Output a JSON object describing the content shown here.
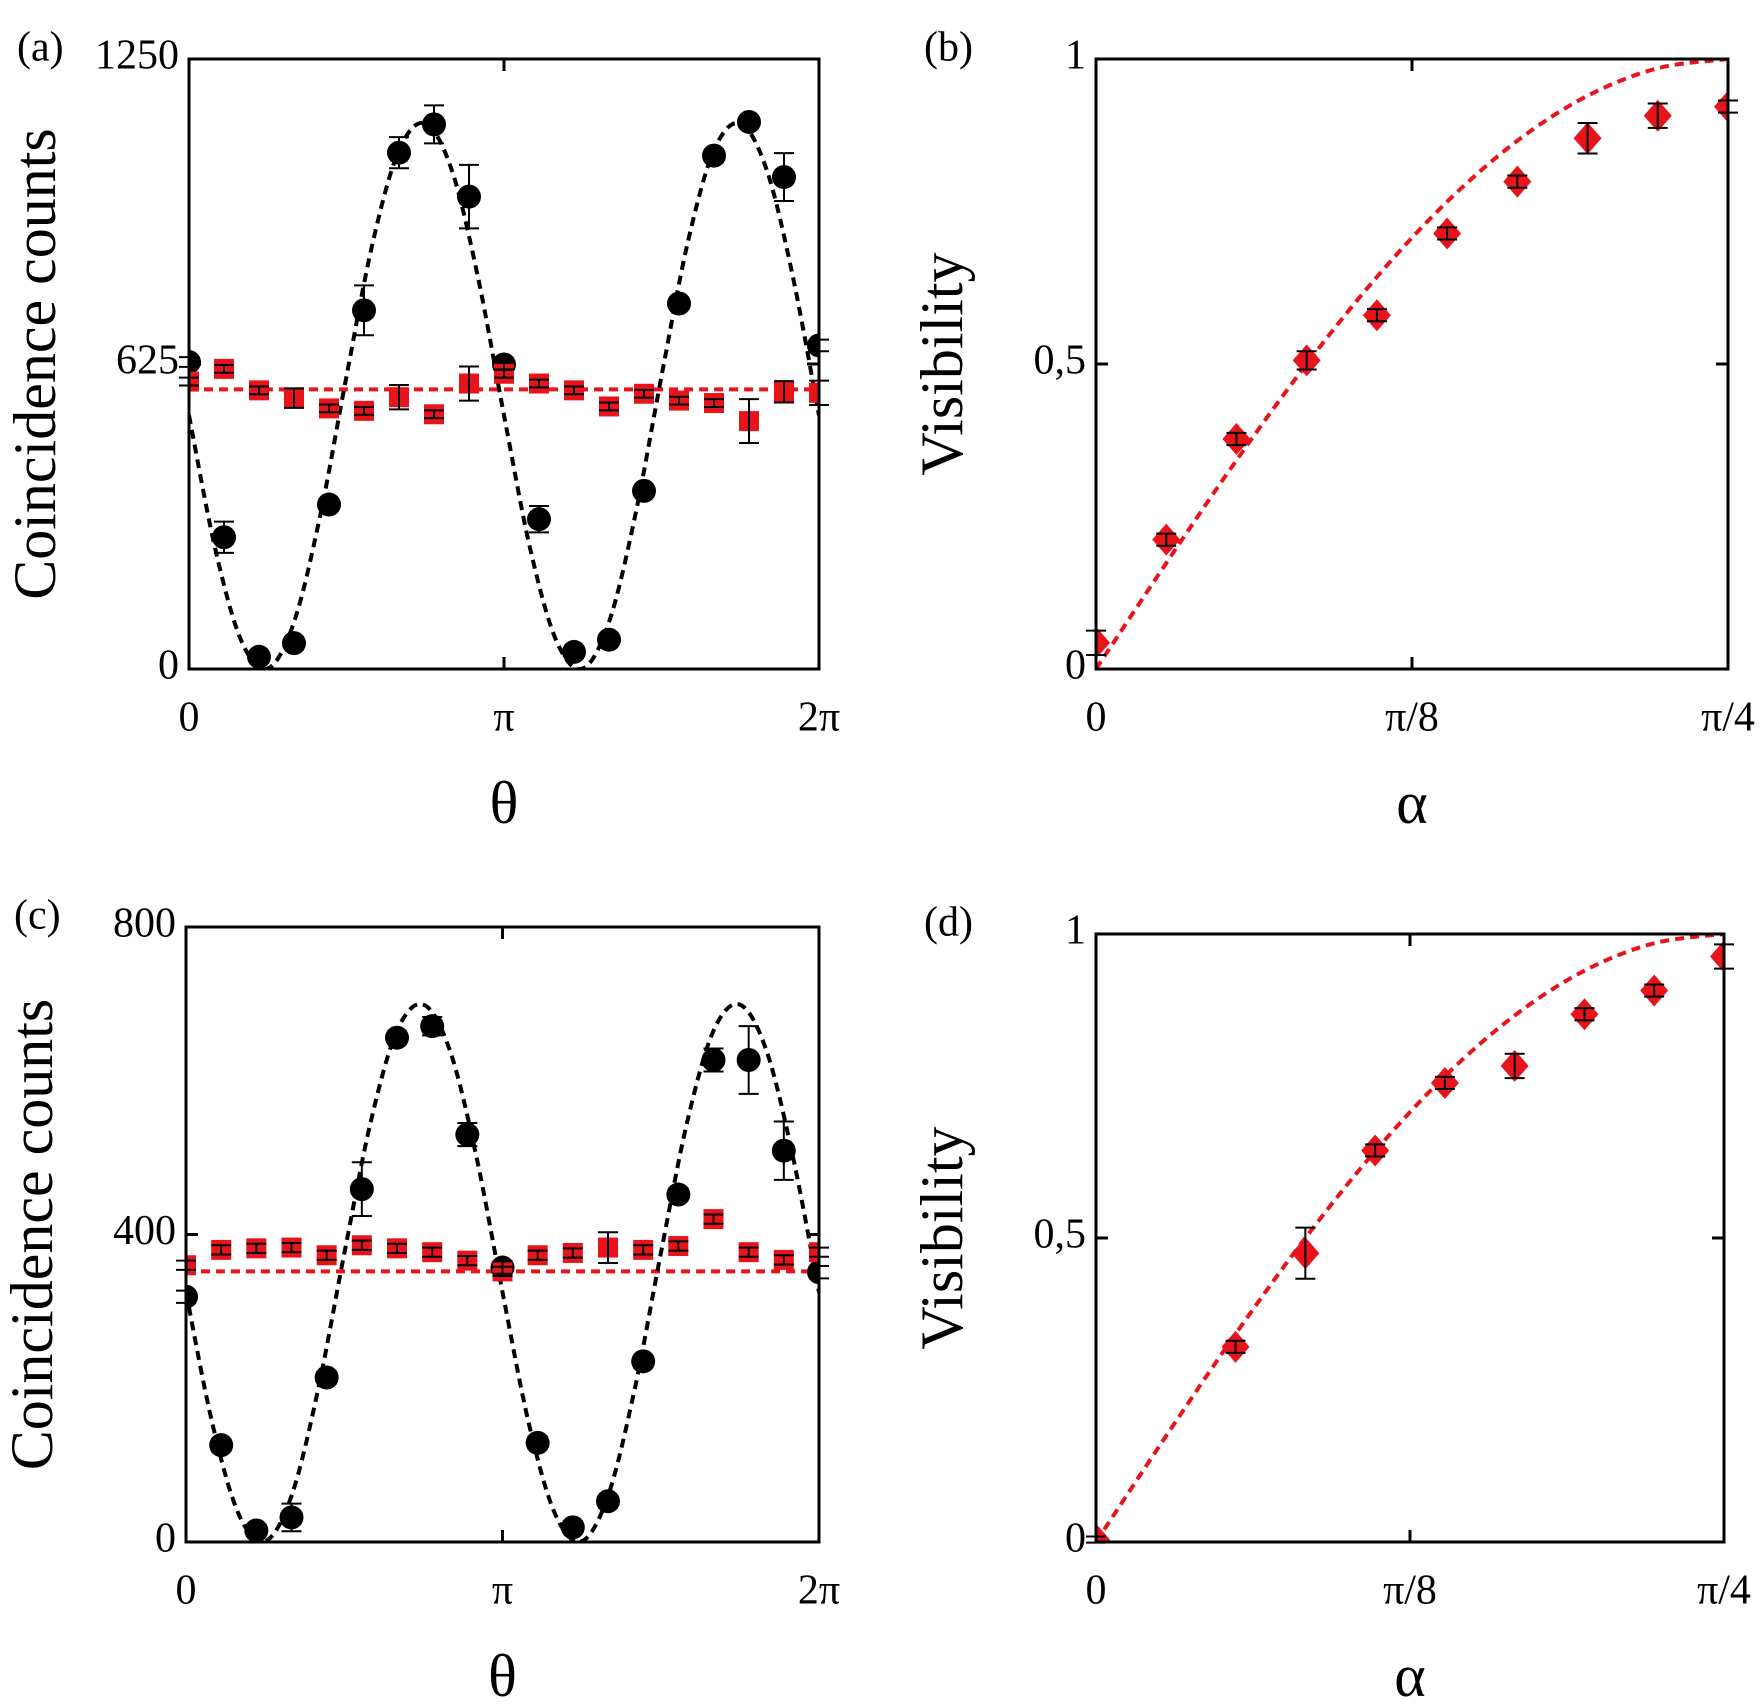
{
  "chart_data": [
    {
      "type": "scatter",
      "panel_label": "(a)",
      "x_label": "θ",
      "y_label": "Coincidence counts",
      "xlim": [
        0,
        6.2832
      ],
      "xticks": [
        0,
        {
          "value": 3.1416,
          "label": "π"
        },
        {
          "value": 6.2832,
          "label": "2π"
        }
      ],
      "ylim": [
        0,
        1250
      ],
      "yticks": [
        0,
        625,
        1250
      ],
      "series": [
        {
          "marker": "circle",
          "color": "#000000",
          "x": [
            0,
            0.3491,
            0.6981,
            1.0472,
            1.3963,
            1.7453,
            2.0944,
            2.4435,
            2.7925,
            3.1416,
            3.4907,
            3.8397,
            4.1888,
            4.5379,
            4.8869,
            5.236,
            5.5851,
            5.9341,
            6.2832
          ],
          "values": [
            629,
            270,
            25,
            53,
            337,
            735,
            1058,
            1116,
            968,
            624,
            307,
            35,
            60,
            365,
            749,
            1052,
            1121,
            1008,
            663
          ],
          "errors": [
            10,
            32,
            10,
            10,
            12,
            51,
            32,
            39,
            65,
            10,
            27,
            10,
            12,
            12,
            12,
            12,
            12,
            49,
            12
          ]
        },
        {
          "marker": "square",
          "color": "#e8141b",
          "x": [
            0,
            0.3491,
            0.6981,
            1.0472,
            1.3963,
            1.7453,
            2.0944,
            2.4435,
            2.7925,
            3.1416,
            3.4907,
            3.8397,
            4.1888,
            4.5379,
            4.8869,
            5.236,
            5.5851,
            5.9341,
            6.2832
          ],
          "values": [
            589,
            615,
            571,
            555,
            534,
            529,
            557,
            522,
            585,
            605,
            585,
            571,
            538,
            564,
            550,
            545,
            508,
            568,
            566
          ],
          "errors": [
            8,
            8,
            8,
            20,
            8,
            8,
            25,
            8,
            35,
            8,
            8,
            8,
            8,
            8,
            8,
            8,
            45,
            22,
            25
          ]
        },
        {
          "line": "dashed",
          "color": "#e8141b",
          "x": [
            0,
            6.2832
          ],
          "values": [
            573,
            573
          ]
        },
        {
          "line": "dashed",
          "color": "#000000",
          "x": [
            0,
            0.2618,
            0.5236,
            0.7854,
            1.0472,
            1.309,
            1.5708,
            1.8326,
            2.0944,
            2.3562,
            2.618,
            2.8798,
            3.1416,
            3.4034,
            3.6652,
            3.927,
            4.1888,
            4.4506,
            4.7124,
            4.9742,
            5.236,
            5.4978,
            5.7596,
            6.0214,
            6.2832
          ],
          "values": [
            520,
            246,
            57,
            1,
            96,
            315,
            600,
            874,
            1063,
            1118,
            1024,
            805,
            520,
            246,
            57,
            1,
            96,
            315,
            600,
            874,
            1063,
            1118,
            1024,
            805,
            520
          ]
        }
      ]
    },
    {
      "type": "scatter",
      "panel_label": "(b)",
      "x_label": "α",
      "y_label": "Visibility",
      "xlim": [
        0,
        0.7854
      ],
      "xticks": [
        0,
        {
          "value": 0.3927,
          "label": "π/8"
        },
        {
          "value": 0.7854,
          "label": "π/4"
        }
      ],
      "ylim": [
        0,
        1
      ],
      "yticks": [
        0,
        {
          "value": 0.5,
          "label": "0,5"
        },
        1
      ],
      "series": [
        {
          "marker": "diamond",
          "color": "#e8141b",
          "x": [
            0,
            0.0873,
            0.1745,
            0.2618,
            0.3491,
            0.4363,
            0.5236,
            0.6109,
            0.6981,
            0.7854
          ],
          "values": [
            0.043,
            0.212,
            0.377,
            0.506,
            0.58,
            0.714,
            0.799,
            0.87,
            0.907,
            0.922
          ],
          "errors": [
            0.02,
            0.01,
            0.01,
            0.015,
            0.01,
            0.01,
            0.01,
            0.025,
            0.02,
            0.01
          ]
        },
        {
          "line": "dashed",
          "color": "#e8141b",
          "x": [
            0,
            0.0873,
            0.1745,
            0.2618,
            0.3491,
            0.4363,
            0.5236,
            0.6109,
            0.6981,
            0.7854
          ],
          "values": [
            0,
            0.1736,
            0.342,
            0.5,
            0.6428,
            0.766,
            0.866,
            0.9397,
            0.9848,
            1
          ]
        }
      ]
    },
    {
      "type": "scatter",
      "panel_label": "(c)",
      "x_label": "θ",
      "y_label": "Coincidence counts",
      "xlim": [
        0,
        6.2832
      ],
      "xticks": [
        0,
        {
          "value": 3.1416,
          "label": "π"
        },
        {
          "value": 6.2832,
          "label": "2π"
        }
      ],
      "ylim": [
        0,
        800
      ],
      "yticks": [
        0,
        400,
        800
      ],
      "series": [
        {
          "marker": "circle",
          "color": "#000000",
          "x": [
            0,
            0.3491,
            0.6981,
            1.0472,
            1.3963,
            1.7453,
            2.0944,
            2.4435,
            2.7925,
            3.1416,
            3.4907,
            3.8397,
            4.1888,
            4.5379,
            4.8869,
            5.236,
            5.5851,
            5.9341,
            6.2832
          ],
          "values": [
            319,
            126,
            15,
            32,
            214,
            459,
            656,
            671,
            530,
            357,
            129,
            19,
            53,
            235,
            452,
            627,
            627,
            509,
            351
          ],
          "errors": [
            8,
            8,
            8,
            18,
            8,
            35,
            8,
            12,
            15,
            8,
            8,
            8,
            8,
            8,
            8,
            15,
            44,
            38,
            8
          ]
        },
        {
          "marker": "square",
          "color": "#e8141b",
          "x": [
            0,
            0.3491,
            0.6981,
            1.0472,
            1.3963,
            1.7453,
            2.0944,
            2.4435,
            2.7925,
            3.1416,
            3.4907,
            3.8397,
            4.1888,
            4.5379,
            4.8869,
            5.236,
            5.5851,
            5.9341,
            6.2832
          ],
          "values": [
            360,
            380,
            382,
            383,
            373,
            386,
            382,
            377,
            366,
            352,
            373,
            376,
            383,
            380,
            385,
            420,
            377,
            367,
            377
          ],
          "errors": [
            6,
            6,
            6,
            6,
            6,
            6,
            6,
            6,
            6,
            6,
            6,
            6,
            20,
            6,
            6,
            6,
            6,
            6,
            6
          ]
        },
        {
          "line": "dashed",
          "color": "#e8141b",
          "x": [
            0,
            6.2832
          ],
          "values": [
            352,
            352
          ]
        },
        {
          "line": "dashed",
          "color": "#000000",
          "x": [
            0,
            0.2618,
            0.5236,
            0.7854,
            1.0472,
            1.309,
            1.5708,
            1.8326,
            2.0944,
            2.3562,
            2.618,
            2.8798,
            3.1416,
            3.4034,
            3.6652,
            3.927,
            4.1888,
            4.4506,
            4.7124,
            4.9742,
            5.236,
            5.4978,
            5.7596,
            6.0214,
            6.2832
          ],
          "values": [
            325,
            154,
            36,
            1,
            60,
            197,
            375,
            546,
            665,
            699,
            640,
            503,
            325,
            154,
            36,
            1,
            60,
            197,
            375,
            546,
            665,
            699,
            640,
            503,
            325
          ]
        }
      ]
    },
    {
      "type": "scatter",
      "panel_label": "(d)",
      "x_label": "α",
      "y_label": "Visibility",
      "xlim": [
        0,
        0.7854
      ],
      "xticks": [
        0,
        {
          "value": 0.3927,
          "label": "π/8"
        },
        {
          "value": 0.7854,
          "label": "π/4"
        }
      ],
      "ylim": [
        0,
        1
      ],
      "yticks": [
        0,
        {
          "value": 0.5,
          "label": "0,5"
        },
        1
      ],
      "series": [
        {
          "marker": "diamond",
          "color": "#e8141b",
          "x": [
            0,
            0.1745,
            0.2618,
            0.3491,
            0.4363,
            0.5236,
            0.6109,
            0.6981,
            0.7854
          ],
          "values": [
            0.004,
            0.321,
            0.475,
            0.644,
            0.755,
            0.783,
            0.868,
            0.907,
            0.963
          ],
          "errors": [
            0.005,
            0.01,
            0.042,
            0.01,
            0.01,
            0.02,
            0.01,
            0.01,
            0.02
          ]
        },
        {
          "line": "dashed",
          "color": "#e8141b",
          "x": [
            0,
            0.0873,
            0.1745,
            0.2618,
            0.3491,
            0.4363,
            0.5236,
            0.6109,
            0.6981,
            0.7854
          ],
          "values": [
            0,
            0.1736,
            0.342,
            0.5,
            0.6428,
            0.766,
            0.866,
            0.9397,
            0.9848,
            1
          ]
        }
      ]
    }
  ]
}
